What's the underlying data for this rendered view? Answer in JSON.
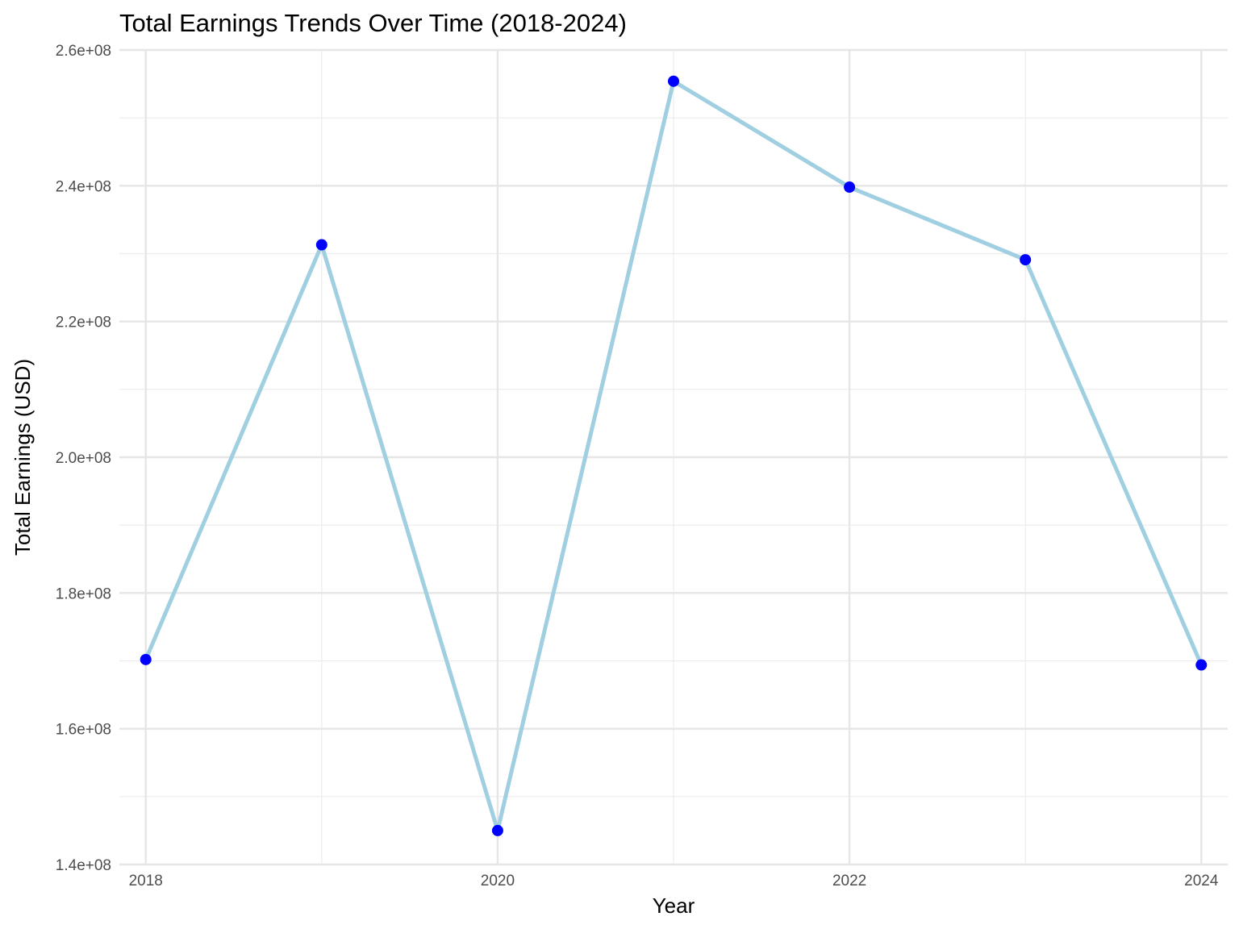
{
  "chart_data": {
    "type": "line",
    "title": "Total Earnings Trends Over Time (2018-2024)",
    "xlabel": "Year",
    "ylabel": "Total Earnings (USD)",
    "x": [
      2018,
      2019,
      2020,
      2021,
      2022,
      2023,
      2024
    ],
    "series": [
      {
        "values": [
          170200000,
          231300000,
          145000000,
          255400000,
          239800000,
          229100000,
          169400000
        ],
        "line_color": "#9fcfe0",
        "point_color": "#0000ff"
      }
    ],
    "xlim": [
      2017.85,
      2024.15
    ],
    "ylim": [
      140000000,
      260000000
    ],
    "x_ticks": [
      2018,
      2020,
      2022,
      2024
    ],
    "x_tick_labels": [
      "2018",
      "2020",
      "2022",
      "2024"
    ],
    "y_ticks": [
      140000000,
      160000000,
      180000000,
      200000000,
      220000000,
      240000000,
      260000000
    ],
    "y_tick_labels": [
      "1.4e+08",
      "1.6e+08",
      "1.8e+08",
      "2.0e+08",
      "2.2e+08",
      "2.4e+08",
      "2.6e+08"
    ],
    "grid": true,
    "legend": "none"
  }
}
